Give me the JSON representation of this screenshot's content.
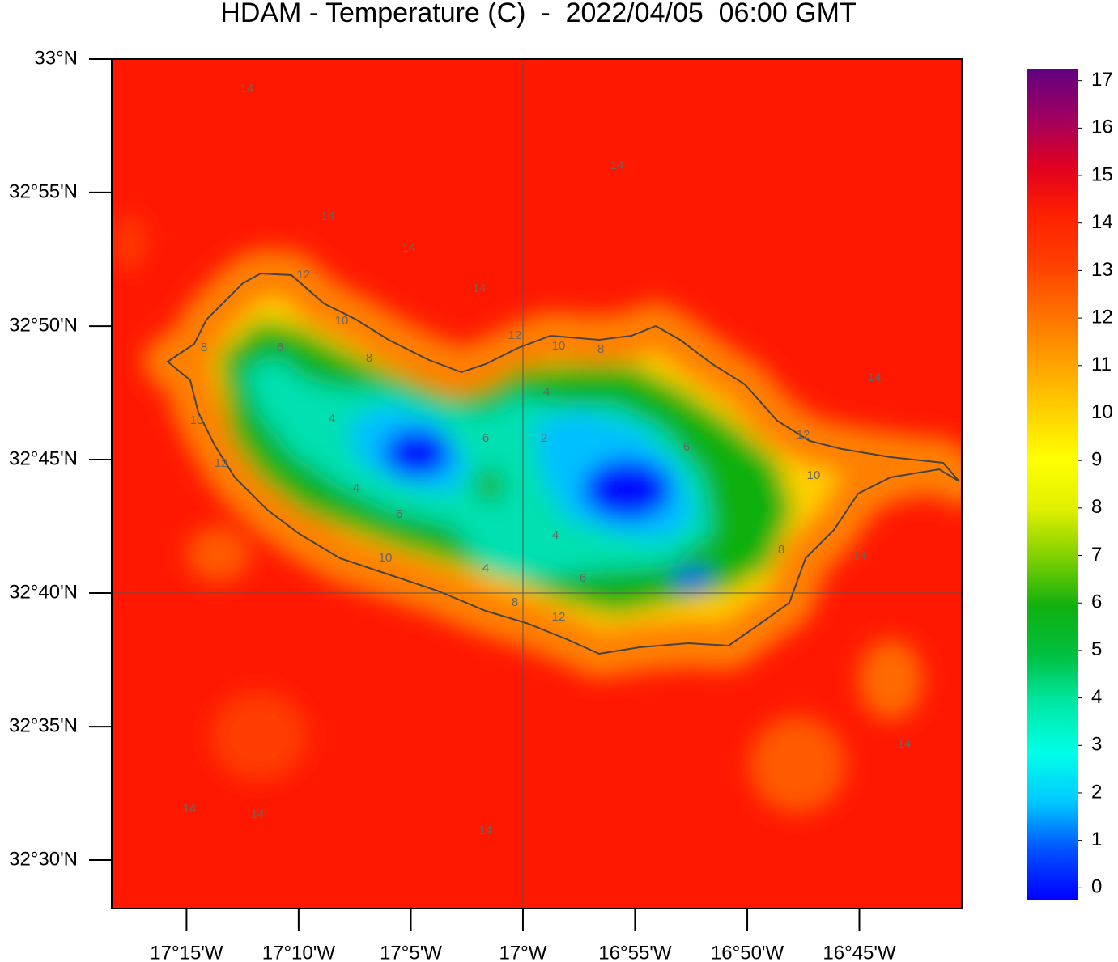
{
  "map": {
    "title": "HDAM - Temperature (C)  -  2022/04/05  06:00 GMT",
    "latlim": [
      32.4697,
      33
    ],
    "lonlim": [
      -17.3056,
      -16.6739
    ],
    "lat_ticks": [
      {
        "value": 33,
        "label": "33°N"
      },
      {
        "value": 32.9167,
        "label": "32°55'N"
      },
      {
        "value": 32.8333,
        "label": "32°50'N"
      },
      {
        "value": 32.75,
        "label": "32°45'N"
      },
      {
        "value": 32.6667,
        "label": "32°40'N"
      },
      {
        "value": 32.5833,
        "label": "32°35'N"
      },
      {
        "value": 32.5,
        "label": "32°30'N"
      }
    ],
    "lon_ticks": [
      {
        "value": -17.25,
        "label": "17°15'W"
      },
      {
        "value": -17.1667,
        "label": "17°10'W"
      },
      {
        "value": -17.0833,
        "label": "17°5'W"
      },
      {
        "value": -17,
        "label": "17°W"
      },
      {
        "value": -16.9167,
        "label": "16°55'W"
      },
      {
        "value": -16.8333,
        "label": "16°50'W"
      },
      {
        "value": -16.75,
        "label": "16°45'W"
      }
    ],
    "colorbar": {
      "lim": [
        -0.25,
        17.25
      ],
      "ticks": [
        0,
        1,
        2,
        3,
        4,
        5,
        6,
        7,
        8,
        9,
        10,
        11,
        12,
        13,
        14,
        15,
        16,
        17
      ],
      "colors": [
        "#0000ff",
        "#0050ff",
        "#00c8ff",
        "#00ffe8",
        "#00e8a8",
        "#00c040",
        "#10b010",
        "#80d000",
        "#e0f000",
        "#ffff00",
        "#ffd000",
        "#ffa000",
        "#ff7000",
        "#ff4000",
        "#ff2000",
        "#e00020",
        "#a00060",
        "#600080"
      ]
    },
    "contour_labels": [
      "14",
      "14",
      "14",
      "14",
      "14",
      "12",
      "10",
      "12",
      "10",
      "8",
      "8",
      "6",
      "8",
      "4",
      "4",
      "6",
      "2",
      "6",
      "12",
      "10",
      "10",
      "12",
      "4",
      "6",
      "4",
      "8",
      "14",
      "10",
      "4",
      "6",
      "8",
      "12",
      "14",
      "14",
      "14",
      "14",
      "14"
    ]
  }
}
